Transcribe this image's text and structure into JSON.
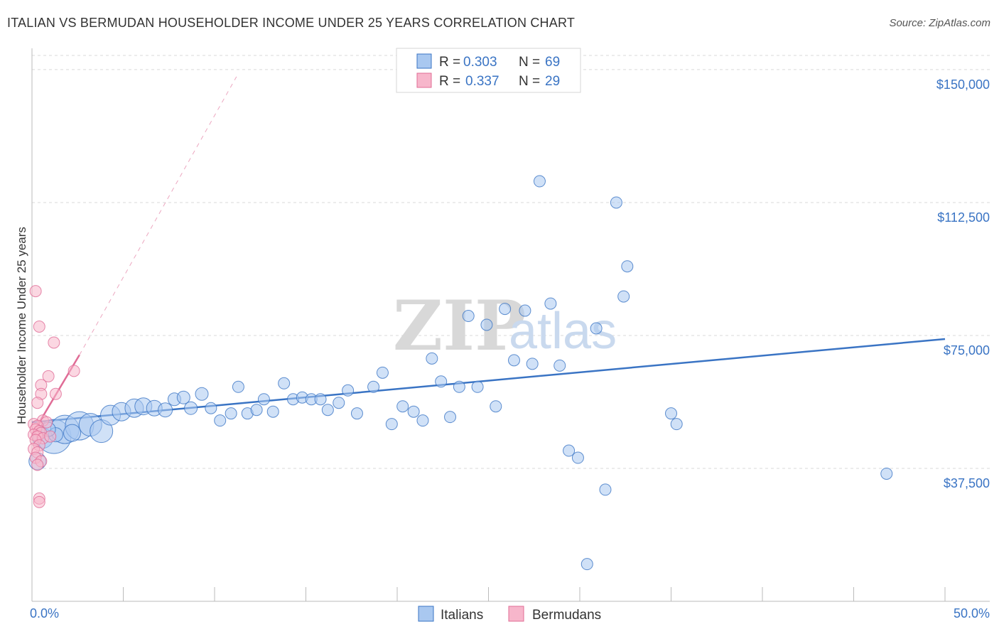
{
  "title": "ITALIAN VS BERMUDAN HOUSEHOLDER INCOME UNDER 25 YEARS CORRELATION CHART",
  "source": "Source: ZipAtlas.com",
  "watermark": {
    "part1": "ZIP",
    "part2": "atlas"
  },
  "colors": {
    "blue": "#3a74c4",
    "blue_fill": "#a9c8f0",
    "pink": "#e06c96",
    "pink_fill": "#f7b6cb",
    "grid": "#d9d9d9"
  },
  "legend": {
    "rows": [
      {
        "r_label": "R =",
        "r_value": "0.303",
        "n_label": "N =",
        "n_value": "69"
      },
      {
        "r_label": "R =",
        "r_value": "0.337",
        "n_label": "N =",
        "n_value": "29"
      }
    ]
  },
  "bottom_legend": [
    "Italians",
    "Bermudans"
  ],
  "chart_data": {
    "type": "scatter",
    "title": "ITALIAN VS BERMUDAN HOUSEHOLDER INCOME UNDER 25 YEARS CORRELATION CHART",
    "xlabel": "",
    "ylabel": "Householder Income Under 25 years",
    "xlim": [
      0,
      50
    ],
    "ylim": [
      0,
      155000
    ],
    "x_tick_labels": [
      "0.0%",
      "50.0%"
    ],
    "y_ticks": [
      37500,
      75000,
      112500,
      150000
    ],
    "y_tick_labels": [
      "$37,500",
      "$75,000",
      "$112,500",
      "$150,000"
    ],
    "series": [
      {
        "name": "Italians",
        "r": 0.303,
        "n": 69,
        "trend": {
          "x": [
            0,
            50
          ],
          "y": [
            50500,
            74000
          ]
        },
        "points": [
          {
            "x": 0.3,
            "y": 39500,
            "s": 12
          },
          {
            "x": 0.6,
            "y": 46000,
            "s": 14
          },
          {
            "x": 1.2,
            "y": 46500,
            "s": 24
          },
          {
            "x": 1.8,
            "y": 48500,
            "s": 20
          },
          {
            "x": 2.6,
            "y": 49500,
            "s": 20
          },
          {
            "x": 3.2,
            "y": 49800,
            "s": 16
          },
          {
            "x": 3.8,
            "y": 48000,
            "s": 16
          },
          {
            "x": 4.3,
            "y": 52500,
            "s": 14
          },
          {
            "x": 4.9,
            "y": 53500,
            "s": 13
          },
          {
            "x": 5.6,
            "y": 54500,
            "s": 13
          },
          {
            "x": 6.1,
            "y": 55000,
            "s": 12
          },
          {
            "x": 6.7,
            "y": 54500,
            "s": 11
          },
          {
            "x": 7.3,
            "y": 54000,
            "s": 10
          },
          {
            "x": 7.8,
            "y": 57000,
            "s": 9
          },
          {
            "x": 8.3,
            "y": 57500,
            "s": 9
          },
          {
            "x": 8.7,
            "y": 54500,
            "s": 9
          },
          {
            "x": 9.3,
            "y": 58500,
            "s": 9
          },
          {
            "x": 9.8,
            "y": 54500,
            "s": 8
          },
          {
            "x": 10.3,
            "y": 51000,
            "s": 8
          },
          {
            "x": 10.9,
            "y": 53000,
            "s": 8
          },
          {
            "x": 11.3,
            "y": 60500,
            "s": 8
          },
          {
            "x": 11.8,
            "y": 53000,
            "s": 8
          },
          {
            "x": 12.3,
            "y": 54000,
            "s": 8
          },
          {
            "x": 12.7,
            "y": 57000,
            "s": 8
          },
          {
            "x": 13.2,
            "y": 53500,
            "s": 8
          },
          {
            "x": 13.8,
            "y": 61500,
            "s": 8
          },
          {
            "x": 14.3,
            "y": 57000,
            "s": 8
          },
          {
            "x": 14.8,
            "y": 57500,
            "s": 8
          },
          {
            "x": 15.3,
            "y": 57000,
            "s": 8
          },
          {
            "x": 15.8,
            "y": 57000,
            "s": 8
          },
          {
            "x": 16.2,
            "y": 54000,
            "s": 8
          },
          {
            "x": 16.8,
            "y": 56000,
            "s": 8
          },
          {
            "x": 17.3,
            "y": 59500,
            "s": 8
          },
          {
            "x": 17.8,
            "y": 53000,
            "s": 8
          },
          {
            "x": 18.7,
            "y": 60500,
            "s": 8
          },
          {
            "x": 19.2,
            "y": 64500,
            "s": 8
          },
          {
            "x": 19.7,
            "y": 50000,
            "s": 8
          },
          {
            "x": 20.3,
            "y": 55000,
            "s": 8
          },
          {
            "x": 20.9,
            "y": 53500,
            "s": 8
          },
          {
            "x": 21.4,
            "y": 51000,
            "s": 8
          },
          {
            "x": 21.9,
            "y": 68500,
            "s": 8
          },
          {
            "x": 22.4,
            "y": 62000,
            "s": 8
          },
          {
            "x": 22.9,
            "y": 52000,
            "s": 8
          },
          {
            "x": 23.4,
            "y": 60500,
            "s": 8
          },
          {
            "x": 23.9,
            "y": 80500,
            "s": 8
          },
          {
            "x": 24.4,
            "y": 60500,
            "s": 8
          },
          {
            "x": 24.9,
            "y": 78000,
            "s": 8
          },
          {
            "x": 25.4,
            "y": 55000,
            "s": 8
          },
          {
            "x": 25.9,
            "y": 82500,
            "s": 8
          },
          {
            "x": 26.4,
            "y": 68000,
            "s": 8
          },
          {
            "x": 27.0,
            "y": 82000,
            "s": 8
          },
          {
            "x": 27.4,
            "y": 67000,
            "s": 8
          },
          {
            "x": 27.8,
            "y": 118500,
            "s": 8
          },
          {
            "x": 28.4,
            "y": 84000,
            "s": 8
          },
          {
            "x": 28.9,
            "y": 66500,
            "s": 8
          },
          {
            "x": 29.4,
            "y": 42500,
            "s": 8
          },
          {
            "x": 29.9,
            "y": 40500,
            "s": 8
          },
          {
            "x": 30.4,
            "y": 10500,
            "s": 8
          },
          {
            "x": 30.9,
            "y": 77000,
            "s": 8
          },
          {
            "x": 31.4,
            "y": 31500,
            "s": 8
          },
          {
            "x": 32.4,
            "y": 86000,
            "s": 8
          },
          {
            "x": 32.6,
            "y": 94500,
            "s": 8
          },
          {
            "x": 32.0,
            "y": 112500,
            "s": 8
          },
          {
            "x": 35.0,
            "y": 53000,
            "s": 8
          },
          {
            "x": 35.3,
            "y": 50000,
            "s": 8
          },
          {
            "x": 46.8,
            "y": 36000,
            "s": 8
          },
          {
            "x": 1.3,
            "y": 47000,
            "s": 10
          },
          {
            "x": 2.2,
            "y": 47500,
            "s": 12
          },
          {
            "x": 0.9,
            "y": 48500,
            "s": 10
          }
        ]
      },
      {
        "name": "Bermudans",
        "r": 0.337,
        "n": 29,
        "trend": {
          "x": [
            0,
            2.6
          ],
          "y": [
            47000,
            69500
          ]
        },
        "trend_extension": {
          "x": [
            2.6,
            11.2
          ],
          "y": [
            69500,
            148000
          ]
        },
        "points": [
          {
            "x": 0.2,
            "y": 87500,
            "s": 8
          },
          {
            "x": 0.4,
            "y": 77500,
            "s": 8
          },
          {
            "x": 1.2,
            "y": 73000,
            "s": 8
          },
          {
            "x": 2.3,
            "y": 65000,
            "s": 8
          },
          {
            "x": 0.9,
            "y": 63500,
            "s": 8
          },
          {
            "x": 0.5,
            "y": 61000,
            "s": 8
          },
          {
            "x": 0.5,
            "y": 58500,
            "s": 8
          },
          {
            "x": 1.3,
            "y": 58500,
            "s": 8
          },
          {
            "x": 0.3,
            "y": 56000,
            "s": 8
          },
          {
            "x": 0.6,
            "y": 51000,
            "s": 8
          },
          {
            "x": 0.8,
            "y": 50500,
            "s": 8
          },
          {
            "x": 0.1,
            "y": 50000,
            "s": 8
          },
          {
            "x": 0.3,
            "y": 49500,
            "s": 8
          },
          {
            "x": 0.2,
            "y": 48500,
            "s": 8
          },
          {
            "x": 0.4,
            "y": 48000,
            "s": 8
          },
          {
            "x": 0.5,
            "y": 47500,
            "s": 8
          },
          {
            "x": 0.1,
            "y": 47000,
            "s": 8
          },
          {
            "x": 0.3,
            "y": 46500,
            "s": 8
          },
          {
            "x": 0.6,
            "y": 46000,
            "s": 8
          },
          {
            "x": 1.0,
            "y": 46500,
            "s": 8
          },
          {
            "x": 0.2,
            "y": 45500,
            "s": 8
          },
          {
            "x": 0.4,
            "y": 44000,
            "s": 8
          },
          {
            "x": 0.1,
            "y": 43000,
            "s": 8
          },
          {
            "x": 0.3,
            "y": 42000,
            "s": 8
          },
          {
            "x": 0.2,
            "y": 40500,
            "s": 8
          },
          {
            "x": 0.5,
            "y": 39500,
            "s": 8
          },
          {
            "x": 0.3,
            "y": 38500,
            "s": 8
          },
          {
            "x": 0.4,
            "y": 29000,
            "s": 8
          },
          {
            "x": 0.4,
            "y": 28000,
            "s": 8
          }
        ]
      }
    ]
  }
}
